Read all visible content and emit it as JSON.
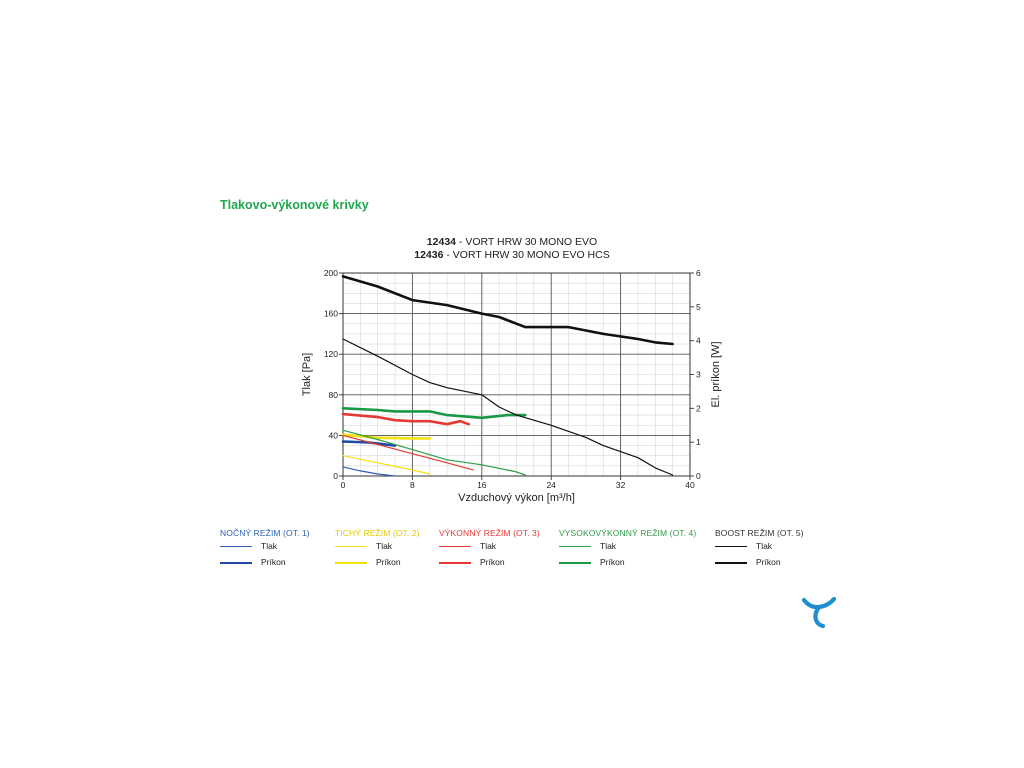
{
  "section_title": "Tlakovo-výkonové krivky",
  "chart_title": {
    "line1_code": "12434",
    "line1_text": " - VORT HRW 30 MONO EVO",
    "line2_code": "12436",
    "line2_text": " - VORT HRW 30 MONO EVO HCS"
  },
  "chart_data": {
    "type": "line",
    "xlabel": "Vzduchový výkon [m³/h]",
    "ylabel": "Tlak [Pa]",
    "y2label": "El. príkon [W]",
    "xlim": [
      0,
      40
    ],
    "ylim": [
      0,
      200
    ],
    "y2lim": [
      0,
      6
    ],
    "x_ticks": [
      0,
      8,
      16,
      24,
      32,
      40
    ],
    "y_ticks": [
      0,
      40,
      80,
      120,
      160,
      200
    ],
    "y2_ticks": [
      0,
      1,
      2,
      3,
      4,
      5,
      6
    ],
    "grid": true,
    "series": [
      {
        "name": "NOČNÝ REŽIM (OT. 1) Tlak",
        "color": "#2b5fb4",
        "axis": "left",
        "width": 1.2,
        "points": [
          [
            0,
            9
          ],
          [
            2,
            5
          ],
          [
            4,
            2
          ],
          [
            6,
            0
          ]
        ]
      },
      {
        "name": "NOČNÝ REŽIM (OT. 1) Príkon",
        "color": "#1f4aa0",
        "axis": "right",
        "width": 2.6,
        "points": [
          [
            0,
            1.02
          ],
          [
            3,
            0.99
          ],
          [
            6,
            0.9
          ]
        ]
      },
      {
        "name": "TICHÝ REŽIM (OT. 2) Tlak",
        "color": "#f5e10f",
        "axis": "left",
        "width": 1.2,
        "points": [
          [
            0,
            20
          ],
          [
            4,
            13
          ],
          [
            8,
            6
          ],
          [
            10,
            2
          ]
        ]
      },
      {
        "name": "TICHÝ REŽIM (OT. 2) Príkon",
        "color": "#f5e10f",
        "axis": "right",
        "width": 2.6,
        "points": [
          [
            0,
            1.22
          ],
          [
            4,
            1.13
          ],
          [
            8,
            1.11
          ],
          [
            10,
            1.11
          ]
        ]
      },
      {
        "name": "VÝKONNÝ REŽIM (OT. 3) Tlak",
        "color": "#e53935",
        "axis": "left",
        "width": 1.2,
        "points": [
          [
            0,
            40
          ],
          [
            4,
            31
          ],
          [
            8,
            22
          ],
          [
            12,
            13
          ],
          [
            15,
            6
          ]
        ]
      },
      {
        "name": "VÝKONNÝ REŽIM (OT. 3) Príkon",
        "color": "#e53935",
        "axis": "right",
        "width": 2.6,
        "points": [
          [
            0,
            1.83
          ],
          [
            4,
            1.74
          ],
          [
            6,
            1.65
          ],
          [
            8,
            1.62
          ],
          [
            10,
            1.62
          ],
          [
            12,
            1.53
          ],
          [
            13.5,
            1.62
          ],
          [
            14.5,
            1.53
          ]
        ]
      },
      {
        "name": "VYSOKOVÝKONNÝ REŽIM (OT. 4) Tlak",
        "color": "#2e9e48",
        "axis": "left",
        "width": 1.2,
        "points": [
          [
            0,
            45
          ],
          [
            4,
            36
          ],
          [
            8,
            26
          ],
          [
            12,
            16
          ],
          [
            16,
            11
          ],
          [
            20,
            4
          ],
          [
            21,
            1
          ]
        ]
      },
      {
        "name": "VYSOKOVÝKONNÝ REŽIM (OT. 4) Príkon",
        "color": "#1a9944",
        "axis": "right",
        "width": 2.6,
        "points": [
          [
            0,
            2.0
          ],
          [
            4,
            1.95
          ],
          [
            6,
            1.91
          ],
          [
            10,
            1.91
          ],
          [
            12,
            1.8
          ],
          [
            16,
            1.72
          ],
          [
            19,
            1.8
          ],
          [
            21,
            1.8
          ]
        ]
      },
      {
        "name": "BOOST REŽIM (OT. 5) Tlak",
        "color": "#111111",
        "axis": "left",
        "width": 1.2,
        "points": [
          [
            0,
            135
          ],
          [
            4,
            118
          ],
          [
            8,
            100
          ],
          [
            10,
            92
          ],
          [
            12,
            87
          ],
          [
            16,
            80
          ],
          [
            18,
            68
          ],
          [
            20,
            60
          ],
          [
            24,
            50
          ],
          [
            28,
            38
          ],
          [
            30,
            30
          ],
          [
            34,
            18
          ],
          [
            36,
            8
          ],
          [
            38,
            1
          ]
        ]
      },
      {
        "name": "BOOST REŽIM (OT. 5) Príkon",
        "color": "#111111",
        "axis": "right",
        "width": 2.6,
        "points": [
          [
            0,
            5.9
          ],
          [
            4,
            5.6
          ],
          [
            8,
            5.2
          ],
          [
            12,
            5.05
          ],
          [
            16,
            4.8
          ],
          [
            18,
            4.7
          ],
          [
            21,
            4.4
          ],
          [
            26,
            4.4
          ],
          [
            30,
            4.2
          ],
          [
            34,
            4.05
          ],
          [
            36,
            3.95
          ],
          [
            38,
            3.9
          ]
        ]
      }
    ]
  },
  "legend": [
    {
      "title": "NOČNÝ REŽIM (OT. 1)",
      "color": "#2b5fb4",
      "tlak": "Tlak",
      "prikon": "Príkon",
      "thin": "#2b5fb4",
      "thick": "#1f4aa0"
    },
    {
      "title": "TICHÝ REŽIM (OT. 2)",
      "color": "#e6c800",
      "tlak": "Tlak",
      "prikon": "Príkon",
      "thin": "#f5e10f",
      "thick": "#f5e10f"
    },
    {
      "title": "VÝKONNÝ REŽIM (OT. 3)",
      "color": "#e53935",
      "tlak": "Tlak",
      "prikon": "Príkon",
      "thin": "#e53935",
      "thick": "#e53935"
    },
    {
      "title": "VYSOKOVÝKONNÝ REŽIM (OT. 4)",
      "color": "#2e9e48",
      "tlak": "Tlak",
      "prikon": "Príkon",
      "thin": "#2e9e48",
      "thick": "#1a9944"
    },
    {
      "title": "BOOST REŽIM (OT. 5)",
      "color": "#333333",
      "tlak": "Tlak",
      "prikon": "Príkon",
      "thin": "#111111",
      "thick": "#111111"
    }
  ],
  "logo": {
    "icon": "brand-logo-icon",
    "color": "#1e8ed0"
  }
}
